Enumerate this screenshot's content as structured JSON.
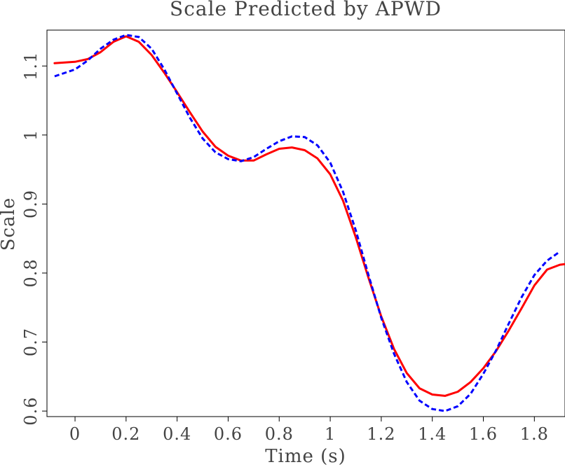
{
  "chart_data": {
    "type": "line",
    "title": "Scale Predicted by APWD",
    "xlabel": "Time (s)",
    "ylabel": "Scale",
    "xlim": [
      -0.11,
      1.92
    ],
    "ylim": [
      0.592,
      1.152
    ],
    "xticks": [
      0,
      0.2,
      0.4,
      0.6,
      0.8,
      1,
      1.2,
      1.4,
      1.6,
      1.8
    ],
    "xtick_labels": [
      "0",
      "0.2",
      "0.4",
      "0.6",
      "0.8",
      "1",
      "1.2",
      "1.4",
      "1.6",
      "1.8"
    ],
    "yticks": [
      0.6,
      0.7,
      0.8,
      0.9,
      1.0,
      1.1
    ],
    "ytick_labels": [
      "0.6",
      "0.7",
      "0.8",
      "0.9",
      "1",
      "1.1"
    ],
    "grid": false,
    "legend": "none",
    "series": [
      {
        "color": "#ff0000",
        "style": "solid",
        "points": [
          [
            -0.08,
            1.104
          ],
          [
            0.0,
            1.106
          ],
          [
            0.05,
            1.11
          ],
          [
            0.1,
            1.12
          ],
          [
            0.15,
            1.135
          ],
          [
            0.2,
            1.143
          ],
          [
            0.25,
            1.135
          ],
          [
            0.3,
            1.116
          ],
          [
            0.35,
            1.09
          ],
          [
            0.4,
            1.062
          ],
          [
            0.45,
            1.033
          ],
          [
            0.5,
            1.005
          ],
          [
            0.55,
            0.983
          ],
          [
            0.6,
            0.97
          ],
          [
            0.65,
            0.963
          ],
          [
            0.7,
            0.963
          ],
          [
            0.75,
            0.972
          ],
          [
            0.8,
            0.98
          ],
          [
            0.85,
            0.982
          ],
          [
            0.9,
            0.978
          ],
          [
            0.95,
            0.966
          ],
          [
            1.0,
            0.943
          ],
          [
            1.05,
            0.905
          ],
          [
            1.1,
            0.852
          ],
          [
            1.15,
            0.793
          ],
          [
            1.2,
            0.737
          ],
          [
            1.25,
            0.69
          ],
          [
            1.3,
            0.655
          ],
          [
            1.35,
            0.633
          ],
          [
            1.4,
            0.624
          ],
          [
            1.45,
            0.622
          ],
          [
            1.5,
            0.628
          ],
          [
            1.55,
            0.642
          ],
          [
            1.6,
            0.662
          ],
          [
            1.65,
            0.687
          ],
          [
            1.7,
            0.717
          ],
          [
            1.75,
            0.749
          ],
          [
            1.8,
            0.782
          ],
          [
            1.85,
            0.805
          ],
          [
            1.9,
            0.812
          ],
          [
            1.92,
            0.813
          ]
        ]
      },
      {
        "color": "#0000ff",
        "style": "dashed",
        "points": [
          [
            -0.08,
            1.085
          ],
          [
            0.0,
            1.095
          ],
          [
            0.05,
            1.108
          ],
          [
            0.1,
            1.125
          ],
          [
            0.15,
            1.138
          ],
          [
            0.2,
            1.145
          ],
          [
            0.25,
            1.142
          ],
          [
            0.3,
            1.125
          ],
          [
            0.35,
            1.095
          ],
          [
            0.4,
            1.06
          ],
          [
            0.45,
            1.025
          ],
          [
            0.5,
            0.995
          ],
          [
            0.55,
            0.975
          ],
          [
            0.6,
            0.965
          ],
          [
            0.65,
            0.962
          ],
          [
            0.7,
            0.968
          ],
          [
            0.75,
            0.98
          ],
          [
            0.8,
            0.991
          ],
          [
            0.85,
            0.998
          ],
          [
            0.9,
            0.997
          ],
          [
            0.95,
            0.985
          ],
          [
            1.0,
            0.96
          ],
          [
            1.05,
            0.918
          ],
          [
            1.1,
            0.862
          ],
          [
            1.15,
            0.797
          ],
          [
            1.2,
            0.735
          ],
          [
            1.25,
            0.683
          ],
          [
            1.3,
            0.642
          ],
          [
            1.35,
            0.615
          ],
          [
            1.4,
            0.603
          ],
          [
            1.45,
            0.6
          ],
          [
            1.5,
            0.607
          ],
          [
            1.55,
            0.625
          ],
          [
            1.6,
            0.654
          ],
          [
            1.65,
            0.688
          ],
          [
            1.7,
            0.727
          ],
          [
            1.75,
            0.765
          ],
          [
            1.8,
            0.797
          ],
          [
            1.85,
            0.818
          ],
          [
            1.9,
            0.831
          ]
        ]
      }
    ]
  }
}
